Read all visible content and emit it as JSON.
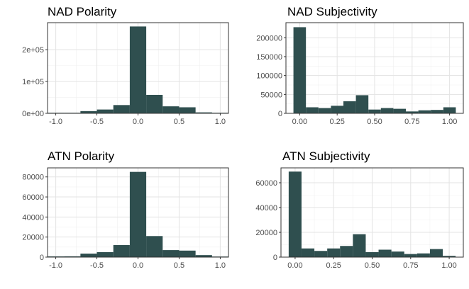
{
  "chart_data": [
    {
      "type": "bar",
      "title": "NAD Polarity",
      "xlabel": "",
      "ylabel": "",
      "bin_width": 0.2,
      "x_centers": [
        -1.0,
        -0.8,
        -0.6,
        -0.4,
        -0.2,
        0.0,
        0.2,
        0.4,
        0.6,
        0.8,
        1.0
      ],
      "values": [
        300,
        1500,
        7000,
        12000,
        26000,
        273000,
        58000,
        22000,
        19000,
        3000,
        1000
      ],
      "xlim": [
        -1.1,
        1.1
      ],
      "ylim": [
        0,
        285000
      ],
      "x_ticks": [
        -1.0,
        -0.5,
        0.0,
        0.5,
        1.0
      ],
      "x_tick_labels": [
        "-1.0",
        "-0.5",
        "0.0",
        "0.5",
        "1.0"
      ],
      "y_ticks": [
        0,
        100000,
        200000
      ],
      "y_tick_labels": [
        "0e+00",
        "1e+05",
        "2e+05"
      ],
      "grid": true,
      "bar_color": "#2f4f4f"
    },
    {
      "type": "bar",
      "title": "NAD Subjectivity",
      "xlabel": "",
      "ylabel": "",
      "bin_width": 0.0833,
      "x_centers": [
        0.0,
        0.0833,
        0.1667,
        0.25,
        0.3333,
        0.4167,
        0.5,
        0.5833,
        0.6667,
        0.75,
        0.8333,
        0.9167,
        1.0
      ],
      "values": [
        228000,
        16000,
        14000,
        20000,
        32000,
        48000,
        10000,
        14000,
        12000,
        5000,
        8000,
        9000,
        16000
      ],
      "xlim": [
        -0.0917,
        1.0917
      ],
      "ylim": [
        0,
        240000
      ],
      "x_ticks": [
        0.0,
        0.25,
        0.5,
        0.75,
        1.0
      ],
      "x_tick_labels": [
        "0.00",
        "0.25",
        "0.50",
        "0.75",
        "1.00"
      ],
      "y_ticks": [
        0,
        50000,
        100000,
        150000,
        200000
      ],
      "y_tick_labels": [
        "0",
        "50000",
        "100000",
        "150000",
        "200000"
      ],
      "grid": true,
      "bar_color": "#2f4f4f"
    },
    {
      "type": "bar",
      "title": "ATN Polarity",
      "xlabel": "",
      "ylabel": "",
      "bin_width": 0.2,
      "x_centers": [
        -1.0,
        -0.8,
        -0.6,
        -0.4,
        -0.2,
        0.0,
        0.2,
        0.4,
        0.6,
        0.8,
        1.0
      ],
      "values": [
        700,
        800,
        3500,
        5000,
        12000,
        85000,
        21000,
        7000,
        6500,
        2000,
        500
      ],
      "xlim": [
        -1.1,
        1.1
      ],
      "ylim": [
        0,
        89000
      ],
      "x_ticks": [
        -1.0,
        -0.5,
        0.0,
        0.5,
        1.0
      ],
      "x_tick_labels": [
        "-1.0",
        "-0.5",
        "0.0",
        "0.5",
        "1.0"
      ],
      "y_ticks": [
        0,
        20000,
        40000,
        60000,
        80000
      ],
      "y_tick_labels": [
        "0",
        "20000",
        "40000",
        "60000",
        "80000"
      ],
      "grid": true,
      "bar_color": "#2f4f4f"
    },
    {
      "type": "bar",
      "title": "ATN Subjectivity",
      "xlabel": "",
      "ylabel": "",
      "bin_width": 0.0833,
      "x_centers": [
        0.0,
        0.0833,
        0.1667,
        0.25,
        0.3333,
        0.4167,
        0.5,
        0.5833,
        0.6667,
        0.75,
        0.8333,
        0.9167,
        1.0
      ],
      "values": [
        69000,
        7000,
        5000,
        7000,
        9000,
        18500,
        4000,
        6000,
        4500,
        2500,
        3000,
        6500,
        1000
      ],
      "xlim": [
        -0.0917,
        1.0917
      ],
      "ylim": [
        0,
        72000
      ],
      "x_ticks": [
        0.0,
        0.25,
        0.5,
        0.75,
        1.0
      ],
      "x_tick_labels": [
        "0.00",
        "0.25",
        "0.50",
        "0.75",
        "1.00"
      ],
      "y_ticks": [
        0,
        20000,
        40000,
        60000
      ],
      "y_tick_labels": [
        "0",
        "20000",
        "40000",
        "60000"
      ],
      "grid": true,
      "bar_color": "#2f4f4f"
    }
  ]
}
